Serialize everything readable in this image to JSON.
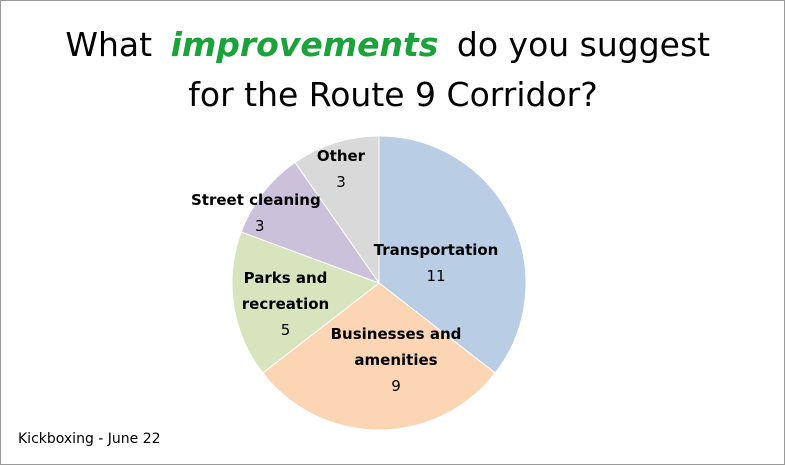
{
  "chart_data": {
    "type": "pie",
    "title": [
      "What",
      "improvements",
      "do you suggest",
      "for the Route 9 Corridor?"
    ],
    "categories": [
      "Transportation",
      "Businesses and amenities",
      "Parks and recreation",
      "Street cleaning",
      "Other"
    ],
    "values": [
      11,
      9,
      5,
      3,
      3
    ],
    "colors": [
      "#b9cde5",
      "#fcd5b5",
      "#d7e4bd",
      "#ccc1da",
      "#d9d9d9"
    ],
    "title_highlight_color": "#1aa33a",
    "footnote": "Kickboxing - June 22"
  }
}
